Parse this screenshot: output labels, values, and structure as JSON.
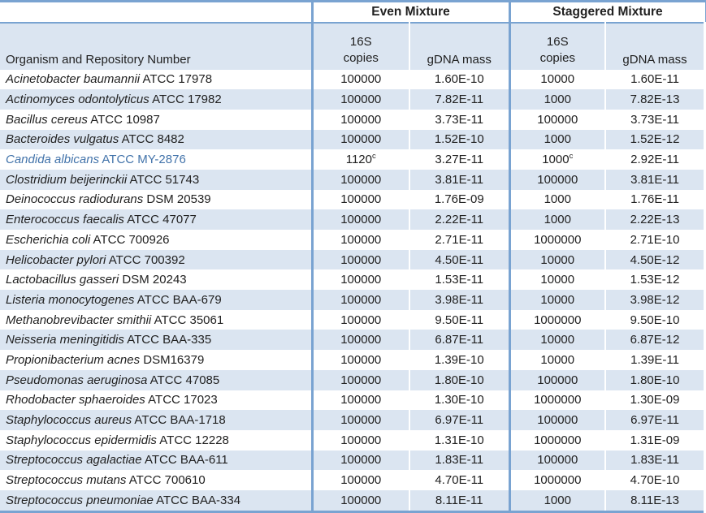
{
  "table": {
    "groups": [
      {
        "label": "Even Mixture"
      },
      {
        "label": "Staggered Mixture"
      }
    ],
    "headers": {
      "organism": "Organism and Repository Number",
      "copies_line1": "16S",
      "copies_line2": "copies",
      "gdna": "gDNA mass"
    },
    "colors": {
      "stripe": "#dbe5f1",
      "rule_blue": "#79a3d1",
      "highlight_text": "#4273aa"
    },
    "rows": [
      {
        "name": "Acinetobacter baumannii",
        "repo": "ATCC 17978",
        "even_copies": "100000",
        "even_gdna": "1.60E-10",
        "stag_copies": "10000",
        "stag_gdna": "1.60E-11"
      },
      {
        "name": "Actinomyces odontolyticus",
        "repo": "ATCC 17982",
        "even_copies": "100000",
        "even_gdna": "7.82E-11",
        "stag_copies": "1000",
        "stag_gdna": "7.82E-13"
      },
      {
        "name": "Bacillus cereus",
        "repo": "ATCC 10987",
        "even_copies": "100000",
        "even_gdna": "3.73E-11",
        "stag_copies": "100000",
        "stag_gdna": "3.73E-11"
      },
      {
        "name": "Bacteroides vulgatus",
        "repo": "ATCC 8482",
        "even_copies": "100000",
        "even_gdna": "1.52E-10",
        "stag_copies": "1000",
        "stag_gdna": "1.52E-12"
      },
      {
        "name": "Candida albicans",
        "repo": "ATCC MY-2876",
        "even_copies": "1120",
        "even_copies_sup": "c",
        "even_gdna": "3.27E-11",
        "stag_copies": "1000",
        "stag_copies_sup": "c",
        "stag_gdna": "2.92E-11",
        "highlight": true
      },
      {
        "name": "Clostridium beijerinckii",
        "repo": "ATCC 51743",
        "even_copies": "100000",
        "even_gdna": "3.81E-11",
        "stag_copies": "100000",
        "stag_gdna": "3.81E-11"
      },
      {
        "name": "Deinococcus radiodurans",
        "repo": "DSM 20539",
        "even_copies": "100000",
        "even_gdna": "1.76E-09",
        "stag_copies": "1000",
        "stag_gdna": "1.76E-11"
      },
      {
        "name": "Enterococcus faecalis",
        "repo": "ATCC 47077",
        "even_copies": "100000",
        "even_gdna": "2.22E-11",
        "stag_copies": "1000",
        "stag_gdna": "2.22E-13"
      },
      {
        "name": "Escherichia coli",
        "repo": "ATCC 700926",
        "even_copies": "100000",
        "even_gdna": "2.71E-11",
        "stag_copies": "1000000",
        "stag_gdna": "2.71E-10"
      },
      {
        "name": "Helicobacter pylori",
        "repo": "ATCC 700392",
        "even_copies": "100000",
        "even_gdna": "4.50E-11",
        "stag_copies": "10000",
        "stag_gdna": "4.50E-12"
      },
      {
        "name": "Lactobacillus gasseri",
        "repo": "DSM 20243",
        "even_copies": "100000",
        "even_gdna": "1.53E-11",
        "stag_copies": "10000",
        "stag_gdna": "1.53E-12"
      },
      {
        "name": "Listeria monocytogenes",
        "repo": "ATCC BAA-679",
        "even_copies": "100000",
        "even_gdna": "3.98E-11",
        "stag_copies": "10000",
        "stag_gdna": "3.98E-12"
      },
      {
        "name": "Methanobrevibacter smithii",
        "repo": "ATCC 35061",
        "even_copies": "100000",
        "even_gdna": "9.50E-11",
        "stag_copies": "1000000",
        "stag_gdna": "9.50E-10"
      },
      {
        "name": "Neisseria meningitidis",
        "repo": "ATCC BAA-335",
        "even_copies": "100000",
        "even_gdna": "6.87E-11",
        "stag_copies": "10000",
        "stag_gdna": "6.87E-12"
      },
      {
        "name": "Propionibacterium acnes",
        "repo": "DSM16379",
        "even_copies": "100000",
        "even_gdna": "1.39E-10",
        "stag_copies": "10000",
        "stag_gdna": "1.39E-11"
      },
      {
        "name": "Pseudomonas aeruginosa",
        "repo": "ATCC 47085",
        "even_copies": "100000",
        "even_gdna": "1.80E-10",
        "stag_copies": "100000",
        "stag_gdna": "1.80E-10"
      },
      {
        "name": "Rhodobacter sphaeroides",
        "repo": "ATCC 17023",
        "even_copies": "100000",
        "even_gdna": "1.30E-10",
        "stag_copies": "1000000",
        "stag_gdna": "1.30E-09"
      },
      {
        "name": "Staphylococcus aureus",
        "repo": "ATCC BAA-1718",
        "even_copies": "100000",
        "even_gdna": "6.97E-11",
        "stag_copies": "100000",
        "stag_gdna": "6.97E-11"
      },
      {
        "name": "Staphylococcus epidermidis",
        "repo": "ATCC 12228",
        "even_copies": "100000",
        "even_gdna": "1.31E-10",
        "stag_copies": "1000000",
        "stag_gdna": "1.31E-09"
      },
      {
        "name": "Streptococcus agalactiae",
        "repo": "ATCC BAA-611",
        "even_copies": "100000",
        "even_gdna": "1.83E-11",
        "stag_copies": "100000",
        "stag_gdna": "1.83E-11"
      },
      {
        "name": "Streptococcus mutans",
        "repo": "ATCC 700610",
        "even_copies": "100000",
        "even_gdna": "4.70E-11",
        "stag_copies": "1000000",
        "stag_gdna": "4.70E-10"
      },
      {
        "name": "Streptococcus pneumoniae",
        "repo": "ATCC BAA-334",
        "even_copies": "100000",
        "even_gdna": "8.11E-11",
        "stag_copies": "1000",
        "stag_gdna": "8.11E-13"
      }
    ]
  }
}
